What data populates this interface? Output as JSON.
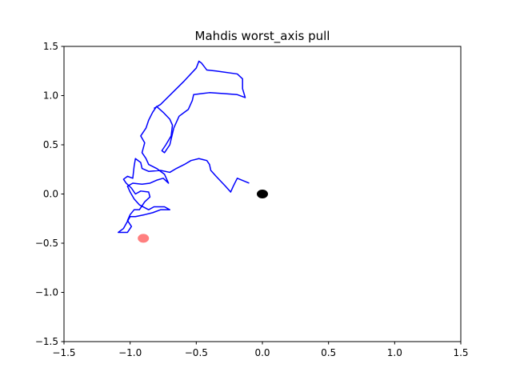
{
  "chart_data": {
    "type": "line",
    "title": "Mahdis worst_axis pull",
    "xlim": [
      -1.5,
      1.5
    ],
    "ylim": [
      -1.5,
      1.5
    ],
    "xticks": [
      {
        "value": -1.5,
        "label": "−1.5"
      },
      {
        "value": -1.0,
        "label": "−1.0"
      },
      {
        "value": -0.5,
        "label": "−0.5"
      },
      {
        "value": 0,
        "label": "0.0"
      },
      0.5,
      {
        "value": 1.0,
        "label": "1.0"
      },
      1.5
    ],
    "yticks": [
      {
        "value": -1.5,
        "label": "−1.5"
      },
      {
        "value": -1.0,
        "label": "−1.0"
      },
      {
        "value": -0.5,
        "label": "−0.5"
      },
      {
        "value": 0,
        "label": "0.0"
      },
      0.5,
      {
        "value": 1.0,
        "label": "1.0"
      },
      1.5
    ],
    "series": [
      {
        "color": "#0000ff",
        "x": [
          -0.1,
          -0.19,
          -0.22,
          -0.24,
          -0.28,
          -0.35,
          -0.39,
          -0.4,
          -0.42,
          -0.48,
          -0.54,
          -0.59,
          -0.65,
          -0.7,
          -0.77,
          -0.86,
          -0.91,
          -0.92,
          -0.96,
          -0.97,
          -0.98,
          -1.02,
          -1.05,
          -1.03,
          -0.99,
          -0.96,
          -0.92,
          -0.86,
          -0.85,
          -0.89,
          -0.93,
          -0.97,
          -1.0,
          -1.02,
          -0.99,
          -1.02,
          -1.09,
          -1.05,
          -1.0,
          -0.96,
          -0.89,
          -0.83,
          -0.77,
          -0.7,
          -0.74,
          -0.82,
          -0.86,
          -0.93,
          -0.97,
          -1.0,
          -1.02,
          -0.98,
          -0.91,
          -0.85,
          -0.8,
          -0.75,
          -0.71,
          -0.74,
          -0.8,
          -0.86,
          -0.88,
          -0.91,
          -0.89,
          -0.92,
          -0.88,
          -0.86,
          -0.83,
          -0.8,
          -0.75,
          -0.7,
          -0.68,
          -0.69,
          -0.73,
          -0.76,
          -0.74,
          -0.7,
          -0.67,
          -0.63,
          -0.59,
          -0.56,
          -0.53,
          -0.52,
          -0.4,
          -0.29,
          -0.19,
          -0.13,
          -0.15,
          -0.15,
          -0.19,
          -0.35,
          -0.42,
          -0.46,
          -0.48,
          -0.5,
          -0.59,
          -0.68,
          -0.77,
          -0.82
        ],
        "values": [
          0.11,
          0.16,
          0.08,
          0.02,
          0.08,
          0.18,
          0.24,
          0.3,
          0.34,
          0.36,
          0.34,
          0.3,
          0.26,
          0.22,
          0.24,
          0.23,
          0.26,
          0.32,
          0.36,
          0.28,
          0.16,
          0.18,
          0.15,
          0.11,
          0.06,
          0.0,
          0.03,
          0.02,
          -0.03,
          -0.08,
          -0.16,
          -0.16,
          -0.21,
          -0.27,
          -0.33,
          -0.39,
          -0.39,
          -0.35,
          -0.23,
          -0.23,
          -0.21,
          -0.19,
          -0.16,
          -0.16,
          -0.13,
          -0.13,
          -0.16,
          -0.11,
          -0.05,
          0.02,
          0.08,
          0.11,
          0.1,
          0.11,
          0.14,
          0.16,
          0.11,
          0.2,
          0.26,
          0.3,
          0.36,
          0.42,
          0.52,
          0.59,
          0.67,
          0.75,
          0.83,
          0.89,
          0.83,
          0.76,
          0.7,
          0.59,
          0.5,
          0.44,
          0.42,
          0.5,
          0.67,
          0.79,
          0.83,
          0.86,
          0.95,
          1.01,
          1.03,
          1.02,
          1.01,
          0.98,
          1.07,
          1.17,
          1.22,
          1.25,
          1.26,
          1.33,
          1.35,
          1.28,
          1.15,
          1.03,
          0.91,
          0.87
        ]
      }
    ],
    "points": [
      {
        "x": 0,
        "y": 0,
        "color": "#000000",
        "alpha": 1
      },
      {
        "x": -0.9,
        "y": -0.45,
        "color": "#ff0000",
        "alpha": 0.5
      }
    ]
  }
}
